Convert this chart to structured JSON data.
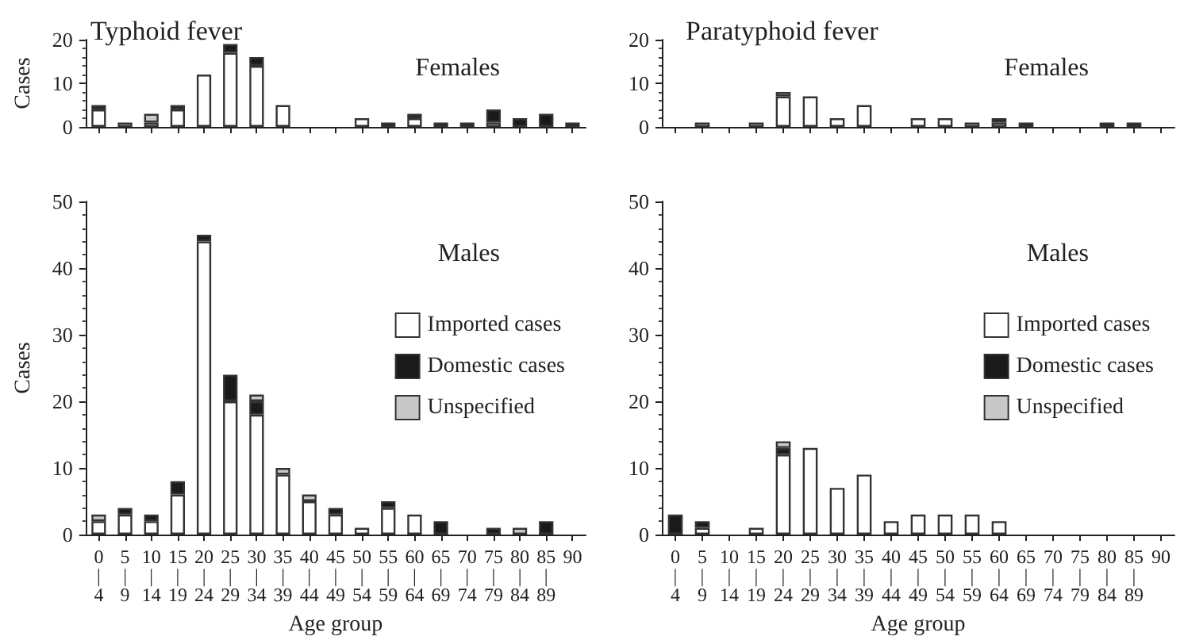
{
  "chart_data": [
    {
      "type": "bar",
      "title": "Typhoid fever",
      "ylabel": "Cases",
      "annotations": [
        "Females"
      ],
      "stacked": true,
      "legend": false,
      "tick_labels": "y",
      "grid": false,
      "categories": [
        null,
        null,
        null,
        null,
        null,
        null,
        null,
        null,
        null,
        null,
        null,
        null,
        null,
        null,
        null,
        null,
        null,
        null,
        null
      ],
      "ylim": [
        0,
        20
      ],
      "yticks": [
        0,
        10,
        20
      ],
      "series": [
        {
          "color": "#ffffff",
          "values": [
            4,
            1,
            1,
            4,
            12,
            17,
            14,
            5,
            0,
            0,
            2,
            0,
            2,
            0,
            0,
            1,
            0,
            0,
            0
          ]
        },
        {
          "color": "#1a1a1a",
          "values": [
            1,
            0,
            0,
            1,
            0,
            2,
            2,
            0,
            0,
            0,
            0,
            1,
            1,
            1,
            1,
            3,
            2,
            3,
            1
          ]
        },
        {
          "color": "#c8c8c8",
          "values": [
            0,
            0,
            2,
            0,
            0,
            0,
            0,
            0,
            0,
            0,
            0,
            0,
            0,
            0,
            0,
            0,
            0,
            0,
            0
          ]
        }
      ]
    },
    {
      "type": "bar",
      "title": "Paratyphoid fever",
      "annotations": [
        "Females"
      ],
      "stacked": true,
      "legend": false,
      "tick_labels": "y",
      "grid": false,
      "categories": [
        null,
        null,
        null,
        null,
        null,
        null,
        null,
        null,
        null,
        null,
        null,
        null,
        null,
        null,
        null,
        null,
        null,
        null,
        null
      ],
      "ylim": [
        0,
        20
      ],
      "yticks": [
        0,
        10,
        20
      ],
      "series": [
        {
          "color": "#ffffff",
          "values": [
            0,
            1,
            0,
            1,
            7,
            7,
            2,
            5,
            0,
            2,
            2,
            1,
            1,
            0,
            0,
            0,
            0,
            0,
            0
          ]
        },
        {
          "color": "#1a1a1a",
          "values": [
            0,
            0,
            0,
            0,
            0,
            0,
            0,
            0,
            0,
            0,
            0,
            0,
            1,
            1,
            0,
            0,
            1,
            1,
            0
          ]
        },
        {
          "color": "#c8c8c8",
          "values": [
            0,
            0,
            0,
            0,
            1,
            0,
            0,
            0,
            0,
            0,
            0,
            0,
            0,
            0,
            0,
            0,
            0,
            0,
            0
          ]
        }
      ]
    },
    {
      "type": "bar",
      "xlabel": "Age group",
      "ylabel": "Cases",
      "annotations": [
        "Males"
      ],
      "stacked": true,
      "legend": "right",
      "grid": false,
      "categories": [
        "0\n|\n4",
        "5\n|\n9",
        "10\n|\n14",
        "15\n|\n19",
        "20\n|\n24",
        "25\n|\n29",
        "30\n|\n34",
        "35\n|\n39",
        "40\n|\n44",
        "45\n|\n49",
        "50\n|\n54",
        "55\n|\n59",
        "60\n|\n64",
        "65\n|\n69",
        "70\n|\n74",
        "75\n|\n79",
        "80\n|\n84",
        "85\n|\n89",
        "90"
      ],
      "ylim": [
        0,
        50
      ],
      "yticks": [
        0,
        10,
        20,
        30,
        40,
        50
      ],
      "series": [
        {
          "name": "Imported cases",
          "color": "#ffffff",
          "values": [
            2,
            3,
            2,
            6,
            44,
            20,
            18,
            9,
            5,
            3,
            1,
            4,
            3,
            0,
            0,
            0,
            0,
            0,
            0
          ]
        },
        {
          "name": "Domestic cases",
          "color": "#1a1a1a",
          "values": [
            0,
            1,
            1,
            2,
            1,
            4,
            2,
            0,
            0,
            1,
            0,
            1,
            0,
            2,
            0,
            1,
            0,
            2,
            0
          ]
        },
        {
          "name": "Unspecified",
          "color": "#c8c8c8",
          "values": [
            1,
            0,
            0,
            0,
            0,
            0,
            1,
            1,
            1,
            0,
            0,
            0,
            0,
            0,
            0,
            0,
            1,
            0,
            0
          ]
        }
      ]
    },
    {
      "type": "bar",
      "xlabel": "Age group",
      "annotations": [
        "Males"
      ],
      "stacked": true,
      "legend": "right",
      "grid": false,
      "categories": [
        "0\n|\n4",
        "5\n|\n9",
        "10\n|\n14",
        "15\n|\n19",
        "20\n|\n24",
        "25\n|\n29",
        "30\n|\n34",
        "35\n|\n39",
        "40\n|\n44",
        "45\n|\n49",
        "50\n|\n54",
        "55\n|\n59",
        "60\n|\n64",
        "65\n|\n69",
        "70\n|\n74",
        "75\n|\n79",
        "80\n|\n84",
        "85\n|\n89",
        "90"
      ],
      "ylim": [
        0,
        50
      ],
      "yticks": [
        0,
        10,
        20,
        30,
        40,
        50
      ],
      "series": [
        {
          "name": "Imported cases",
          "color": "#ffffff",
          "values": [
            0,
            1,
            0,
            1,
            12,
            13,
            7,
            9,
            2,
            3,
            3,
            3,
            2,
            0,
            0,
            0,
            0,
            0,
            0
          ]
        },
        {
          "name": "Domestic cases",
          "color": "#1a1a1a",
          "values": [
            3,
            1,
            0,
            0,
            1,
            0,
            0,
            0,
            0,
            0,
            0,
            0,
            0,
            0,
            0,
            0,
            0,
            0,
            0
          ]
        },
        {
          "name": "Unspecified",
          "color": "#c8c8c8",
          "values": [
            0,
            0,
            0,
            0,
            1,
            0,
            0,
            0,
            0,
            0,
            0,
            0,
            0,
            0,
            0,
            0,
            0,
            0,
            0
          ]
        }
      ]
    }
  ]
}
